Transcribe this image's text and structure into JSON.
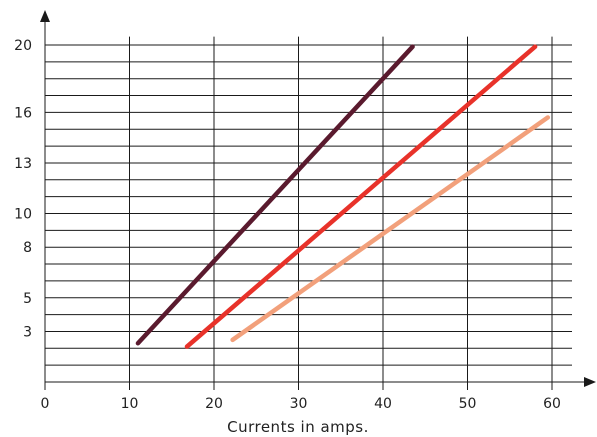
{
  "chart_data": {
    "type": "line",
    "title": "",
    "xlabel": "Currents in amps.",
    "ylabel": "",
    "xlim": [
      0,
      62
    ],
    "ylim": [
      0,
      20.5
    ],
    "grid": true,
    "x_ticks": [
      0,
      10,
      20,
      30,
      40,
      50,
      60
    ],
    "x_tick_labels": [
      "0",
      "10",
      "20",
      "30",
      "40",
      "50",
      "60"
    ],
    "x_grid": [
      10,
      20,
      30,
      40,
      50,
      60
    ],
    "y_ticks": [
      3,
      5,
      8,
      10,
      13,
      16,
      20
    ],
    "y_tick_labels": [
      "3",
      "5",
      "8",
      "10",
      "13",
      "16",
      "20"
    ],
    "y_grid": [
      1,
      2,
      3,
      4,
      5,
      6,
      7,
      8,
      9,
      10,
      11,
      12,
      13,
      14,
      15,
      16,
      17,
      18,
      19,
      20
    ],
    "series": [
      {
        "color": "#5a1a2e",
        "points": [
          [
            11,
            2.3
          ],
          [
            43.5,
            19.9
          ]
        ]
      },
      {
        "color": "#e8322a",
        "points": [
          [
            16.8,
            2.1
          ],
          [
            58,
            19.9
          ]
        ]
      },
      {
        "color": "#f2a07b",
        "points": [
          [
            22.2,
            2.5
          ],
          [
            59.5,
            15.7
          ]
        ]
      }
    ]
  },
  "axis_colors": {
    "axis": "#1a1a1a"
  }
}
